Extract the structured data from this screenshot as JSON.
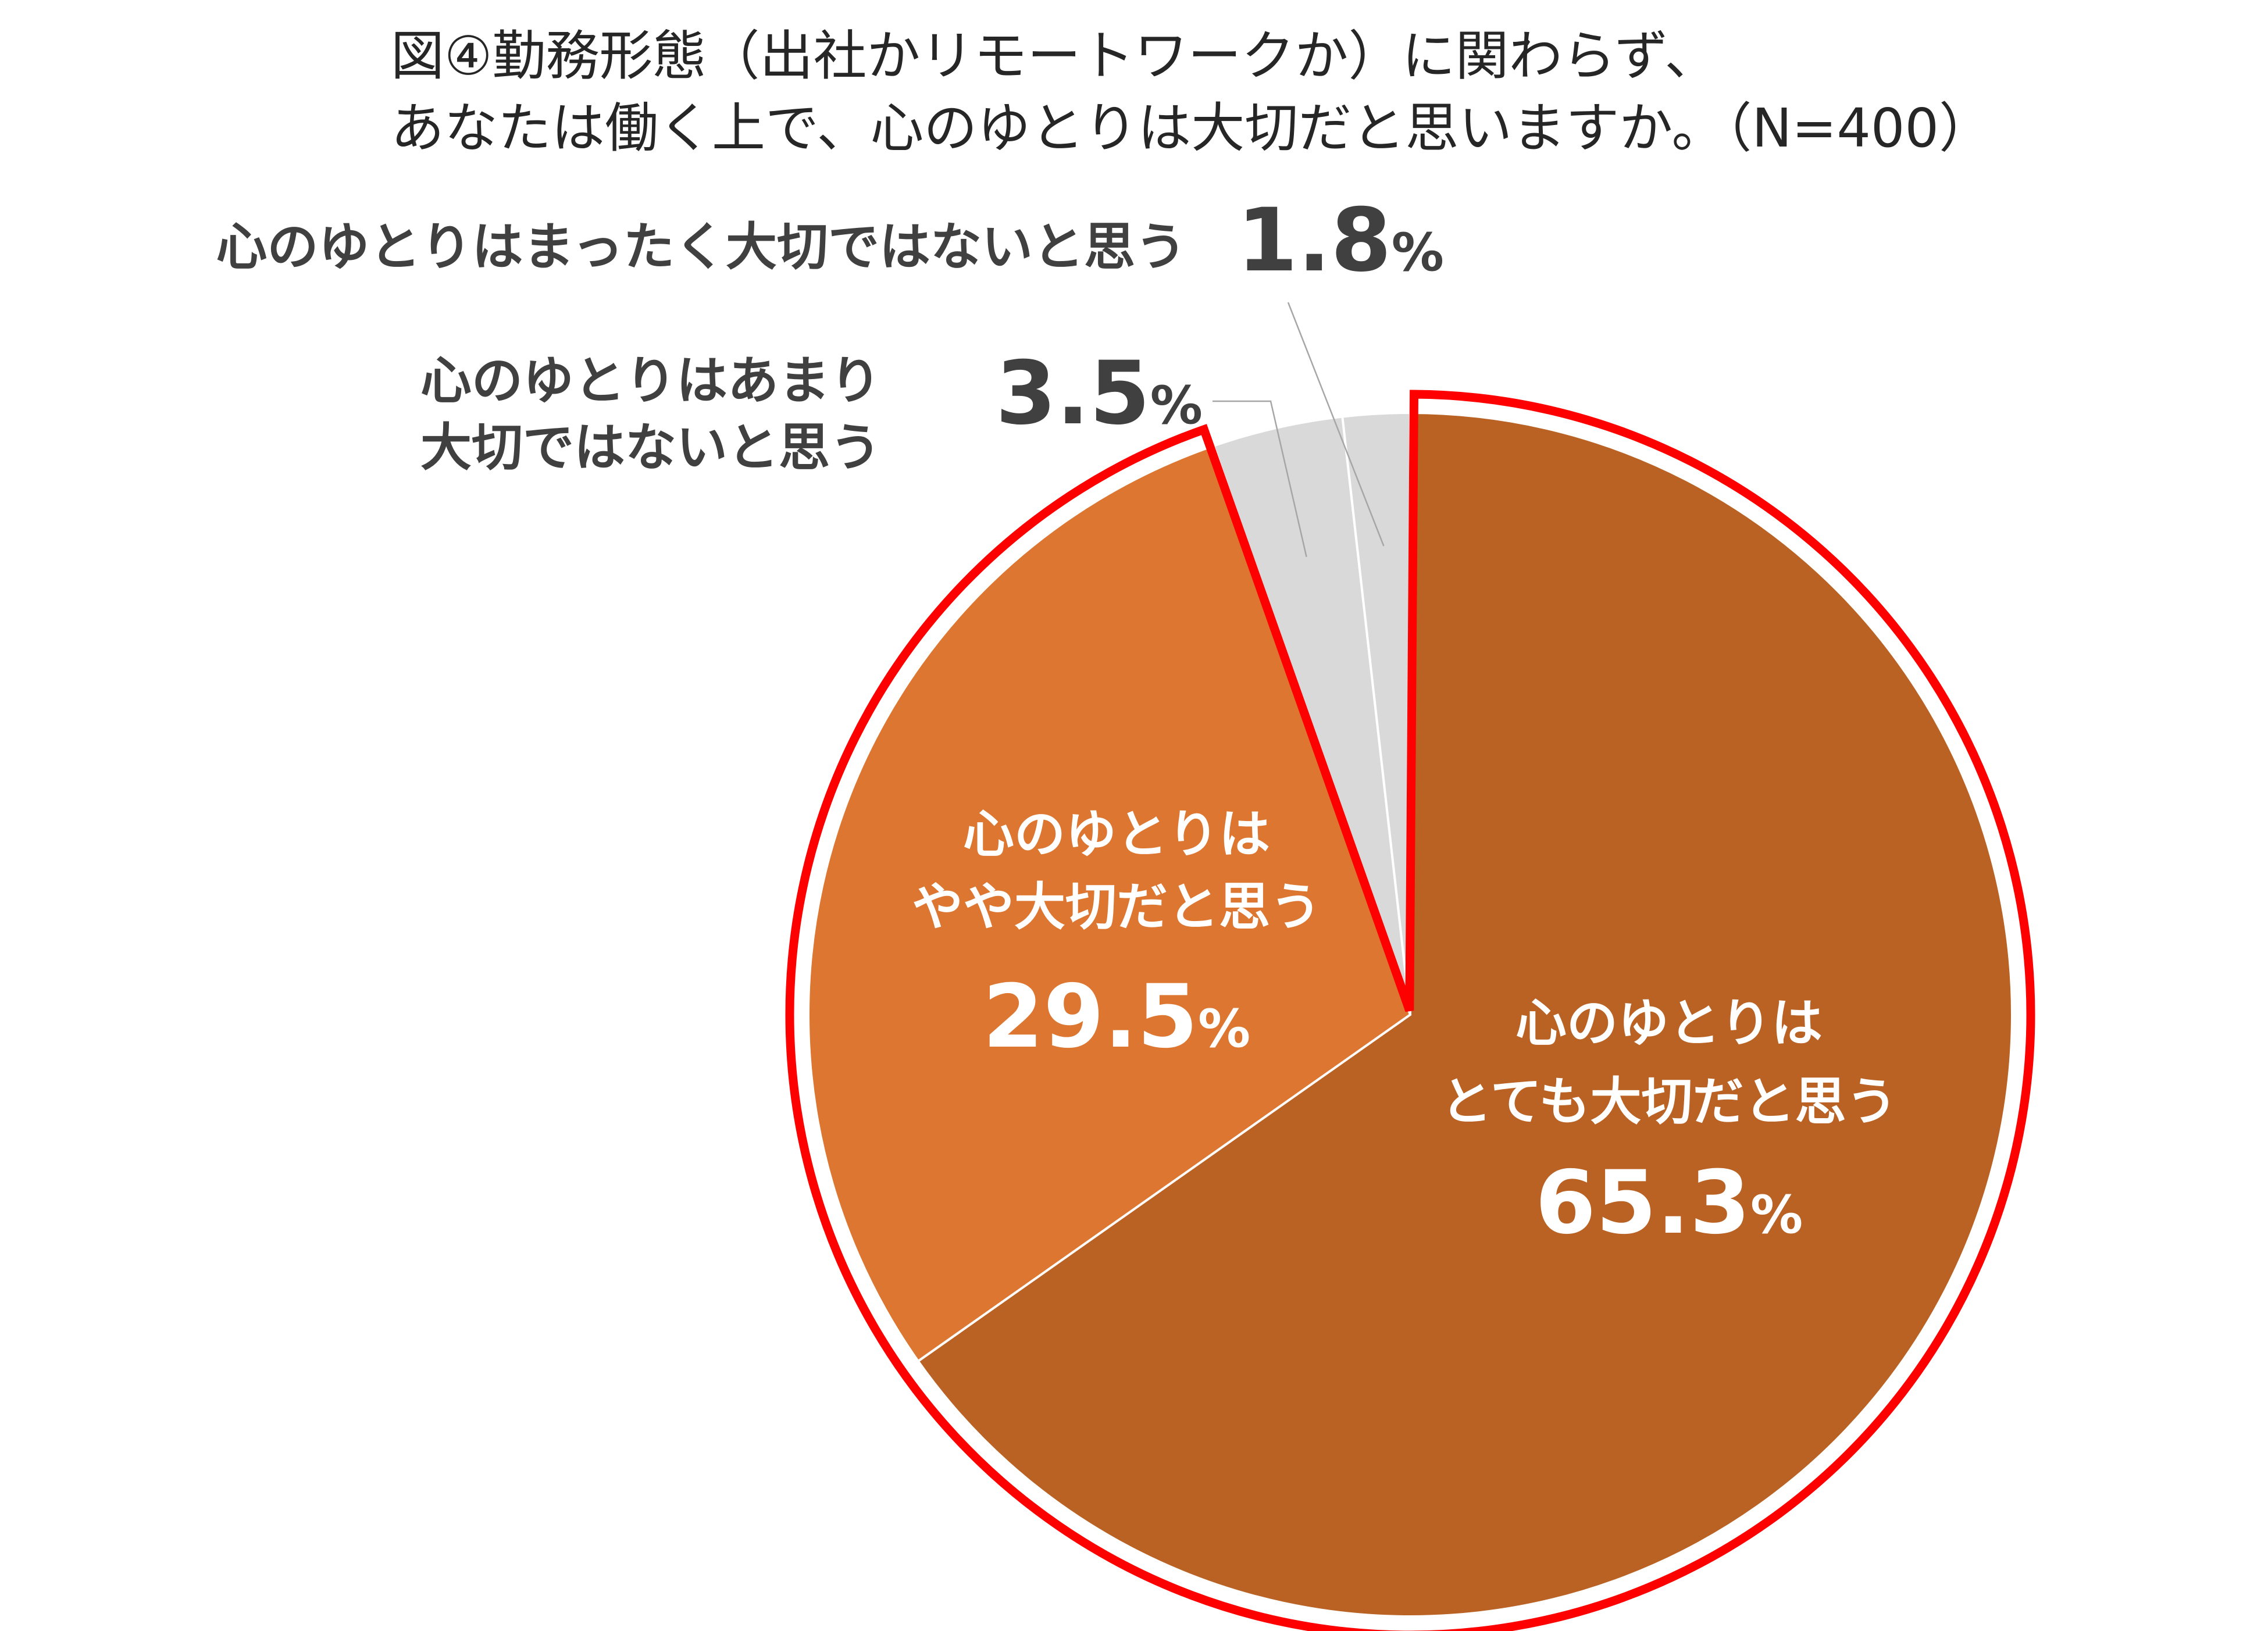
{
  "chart_data": {
    "type": "pie",
    "title": "図④勤務形態（出社かリモートワークか）に関わらず、",
    "subtitle": "あなたは働く上で、心のゆとりは大切だと思いますか。（N=400）",
    "unit": "%",
    "slices": [
      {
        "label_lines": [
          "心のゆとりは",
          "とても大切だと思う"
        ],
        "value": 65.3,
        "value_text": "65.3",
        "color": "#B96224",
        "highlighted": true,
        "label_color": "#ffffff"
      },
      {
        "label_lines": [
          "心のゆとりは",
          "やや大切だと思う"
        ],
        "value": 29.5,
        "value_text": "29.5",
        "color": "#DC7630",
        "highlighted": true,
        "label_color": "#ffffff"
      },
      {
        "label_lines": [
          "心のゆとりはあまり",
          "大切ではないと思う"
        ],
        "value": 3.5,
        "value_text": "3.5",
        "color": "#D9D9D9",
        "highlighted": false,
        "label_color": "#404040"
      },
      {
        "label_lines": [
          "心のゆとりはまったく大切ではないと思う"
        ],
        "value": 1.8,
        "value_text": "1.8",
        "color": "#D9D9D9",
        "highlighted": false,
        "label_color": "#404040"
      }
    ],
    "start_angle_deg": 0,
    "direction": "clockwise",
    "highlight_color": "#FF0000"
  }
}
